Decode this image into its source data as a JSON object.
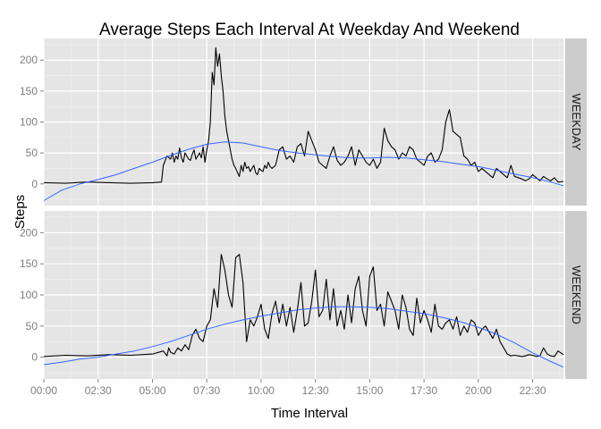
{
  "chart_data": {
    "type": "line",
    "title": "Average Steps Each Interval At Weekday And Weekend",
    "xlabel": "Time Interval",
    "ylabel": "Steps",
    "ylim": [
      -35,
      235
    ],
    "xlim_minutes": [
      0,
      1435
    ],
    "x_ticks": [
      {
        "label": "00:00",
        "value": 0
      },
      {
        "label": "02:30",
        "value": 150
      },
      {
        "label": "05:00",
        "value": 300
      },
      {
        "label": "07:30",
        "value": 450
      },
      {
        "label": "10:00",
        "value": 600
      },
      {
        "label": "12:30",
        "value": 750
      },
      {
        "label": "15:00",
        "value": 900
      },
      {
        "label": "17:30",
        "value": 1050
      },
      {
        "label": "20:00",
        "value": 1200
      },
      {
        "label": "22:30",
        "value": 1350
      }
    ],
    "y_ticks": [
      0,
      50,
      100,
      150,
      200
    ],
    "grid": true,
    "colors": {
      "panel_background": "#e5e5e5",
      "grid_major": "#ffffff",
      "grid_minor": "#f2f2f2",
      "strip_background": "#cccccc",
      "series_line": "#000000",
      "smooth_line": "#3366ff"
    },
    "panels": [
      {
        "label": "WEEKDAY",
        "series": [
          {
            "kind": "average",
            "x": [
              0,
              60,
              120,
              180,
              240,
              300,
              325,
              330,
              340,
              350,
              355,
              360,
              365,
              370,
              375,
              380,
              385,
              390,
              395,
              400,
              405,
              410,
              415,
              420,
              425,
              430,
              435,
              440,
              445,
              450,
              455,
              460,
              465,
              470,
              475,
              480,
              485,
              490,
              495,
              500,
              505,
              510,
              515,
              520,
              525,
              530,
              535,
              540,
              545,
              550,
              555,
              560,
              565,
              570,
              575,
              580,
              585,
              590,
              595,
              600,
              605,
              610,
              615,
              620,
              625,
              630,
              640,
              650,
              660,
              670,
              680,
              690,
              700,
              710,
              720,
              730,
              740,
              750,
              760,
              770,
              780,
              790,
              800,
              810,
              820,
              830,
              840,
              850,
              860,
              870,
              880,
              890,
              900,
              910,
              920,
              930,
              940,
              950,
              960,
              970,
              980,
              990,
              1000,
              1010,
              1020,
              1030,
              1040,
              1050,
              1060,
              1070,
              1080,
              1090,
              1100,
              1110,
              1120,
              1130,
              1140,
              1150,
              1160,
              1170,
              1180,
              1190,
              1200,
              1210,
              1220,
              1230,
              1240,
              1250,
              1260,
              1270,
              1280,
              1290,
              1300,
              1310,
              1320,
              1330,
              1340,
              1350,
              1360,
              1370,
              1380,
              1390,
              1400,
              1410,
              1420,
              1435
            ],
            "y": [
              2,
              1,
              3,
              2,
              1,
              2,
              3,
              30,
              45,
              40,
              50,
              35,
              45,
              40,
              58,
              42,
              35,
              50,
              45,
              40,
              38,
              48,
              55,
              40,
              45,
              50,
              42,
              60,
              35,
              55,
              70,
              100,
              180,
              160,
              220,
              190,
              210,
              175,
              150,
              110,
              85,
              70,
              55,
              40,
              30,
              25,
              18,
              12,
              30,
              20,
              35,
              25,
              28,
              20,
              25,
              30,
              18,
              15,
              25,
              22,
              20,
              30,
              25,
              35,
              28,
              25,
              30,
              55,
              60,
              40,
              45,
              35,
              60,
              65,
              45,
              85,
              70,
              55,
              35,
              30,
              25,
              45,
              60,
              38,
              30,
              35,
              45,
              60,
              30,
              55,
              45,
              35,
              30,
              40,
              25,
              35,
              90,
              70,
              60,
              55,
              40,
              50,
              45,
              60,
              55,
              40,
              35,
              30,
              45,
              50,
              35,
              40,
              55,
              100,
              120,
              85,
              80,
              75,
              45,
              40,
              30,
              35,
              20,
              25,
              20,
              15,
              10,
              25,
              20,
              15,
              10,
              30,
              12,
              10,
              8,
              5,
              8,
              15,
              10,
              5,
              12,
              8,
              5,
              10,
              3,
              4
            ]
          },
          {
            "kind": "smooth",
            "x": [
              0,
              50,
              100,
              150,
              200,
              250,
              300,
              350,
              400,
              450,
              500,
              550,
              600,
              650,
              700,
              750,
              800,
              850,
              900,
              950,
              1000,
              1050,
              1100,
              1150,
              1200,
              1250,
              1300,
              1350,
              1400,
              1435
            ],
            "y": [
              -27,
              -10,
              0,
              7,
              15,
              25,
              35,
              46,
              56,
              64,
              68,
              66,
              60,
              54,
              50,
              47,
              44,
              42,
              42,
              43,
              42,
              39,
              36,
              32,
              28,
              22,
              16,
              10,
              3,
              -3
            ]
          }
        ]
      },
      {
        "label": "WEEKEND",
        "series": [
          {
            "kind": "average",
            "x": [
              0,
              60,
              120,
              180,
              240,
              300,
              330,
              340,
              345,
              350,
              360,
              370,
              380,
              390,
              400,
              410,
              420,
              430,
              440,
              450,
              460,
              470,
              480,
              490,
              500,
              510,
              520,
              530,
              540,
              550,
              560,
              570,
              580,
              590,
              600,
              610,
              620,
              630,
              640,
              650,
              660,
              670,
              680,
              690,
              700,
              710,
              720,
              730,
              740,
              750,
              760,
              770,
              780,
              790,
              800,
              810,
              820,
              830,
              840,
              850,
              860,
              870,
              880,
              890,
              900,
              910,
              920,
              930,
              940,
              950,
              960,
              970,
              980,
              990,
              1000,
              1010,
              1020,
              1030,
              1040,
              1050,
              1060,
              1070,
              1080,
              1090,
              1100,
              1110,
              1120,
              1130,
              1140,
              1150,
              1160,
              1170,
              1180,
              1190,
              1200,
              1210,
              1220,
              1230,
              1240,
              1250,
              1260,
              1270,
              1280,
              1290,
              1300,
              1310,
              1320,
              1330,
              1340,
              1350,
              1360,
              1370,
              1380,
              1390,
              1400,
              1410,
              1420,
              1435
            ],
            "y": [
              1,
              3,
              2,
              4,
              3,
              5,
              10,
              2,
              15,
              8,
              5,
              15,
              10,
              20,
              12,
              35,
              45,
              30,
              25,
              50,
              60,
              110,
              80,
              165,
              140,
              100,
              80,
              160,
              165,
              120,
              25,
              60,
              50,
              65,
              85,
              45,
              30,
              70,
              90,
              55,
              85,
              50,
              80,
              40,
              75,
              120,
              50,
              55,
              90,
              140,
              65,
              75,
              125,
              60,
              110,
              50,
              75,
              45,
              100,
              55,
              110,
              130,
              75,
              50,
              130,
              145,
              75,
              85,
              50,
              105,
              90,
              75,
              45,
              100,
              80,
              45,
              35,
              95,
              55,
              75,
              60,
              40,
              85,
              50,
              45,
              55,
              60,
              45,
              65,
              35,
              50,
              40,
              60,
              55,
              35,
              45,
              50,
              40,
              30,
              45,
              25,
              15,
              5,
              2,
              3,
              2,
              1,
              2,
              4,
              3,
              1,
              2,
              15,
              5,
              2,
              1,
              10,
              4
            ]
          },
          {
            "kind": "smooth",
            "x": [
              0,
              50,
              100,
              150,
              200,
              250,
              300,
              350,
              400,
              450,
              500,
              550,
              600,
              650,
              700,
              750,
              800,
              850,
              900,
              950,
              1000,
              1050,
              1100,
              1150,
              1200,
              1250,
              1300,
              1350,
              1400,
              1435
            ],
            "y": [
              -12,
              -8,
              -3,
              0,
              5,
              10,
              17,
              25,
              35,
              45,
              53,
              60,
              66,
              71,
              76,
              79,
              81,
              81,
              80,
              78,
              74,
              70,
              64,
              57,
              48,
              37,
              23,
              7,
              -7,
              -16
            ]
          }
        ]
      }
    ]
  }
}
